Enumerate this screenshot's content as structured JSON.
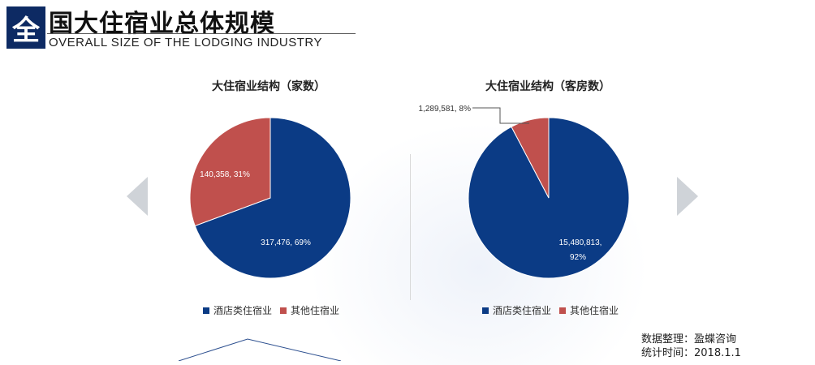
{
  "header": {
    "badge": "全",
    "title": "国大住宿业总体规模",
    "subtitle": "OVERALL SIZE OF THE LODGING INDUSTRY"
  },
  "colors": {
    "primary": "#0b3b85",
    "secondary": "#c0504d"
  },
  "chart_data": [
    {
      "type": "pie",
      "title": "大住宿业结构（家数）",
      "categories": [
        "酒店类住宿业",
        "其他住宿业"
      ],
      "values": [
        317476,
        140358
      ],
      "labels": [
        "317,476, 69%",
        "140,358, 31%"
      ],
      "percent": [
        69,
        31
      ],
      "legend": [
        "酒店类住宿业",
        "其他住宿业"
      ],
      "legend_position": "bottom"
    },
    {
      "type": "pie",
      "title": "大住宿业结构（客房数）",
      "categories": [
        "酒店类住宿业",
        "其他住宿业"
      ],
      "values": [
        15480813,
        1289581
      ],
      "labels": [
        "15,480,813,",
        "1,289,581, 8%"
      ],
      "label_line2": "92%",
      "percent": [
        92,
        8
      ],
      "legend": [
        "酒店类住宿业",
        "其他住宿业"
      ],
      "legend_position": "bottom"
    }
  ],
  "source": {
    "line1": "数据整理：盈蝶咨询",
    "line2": "统计时间：2018.1.1"
  }
}
